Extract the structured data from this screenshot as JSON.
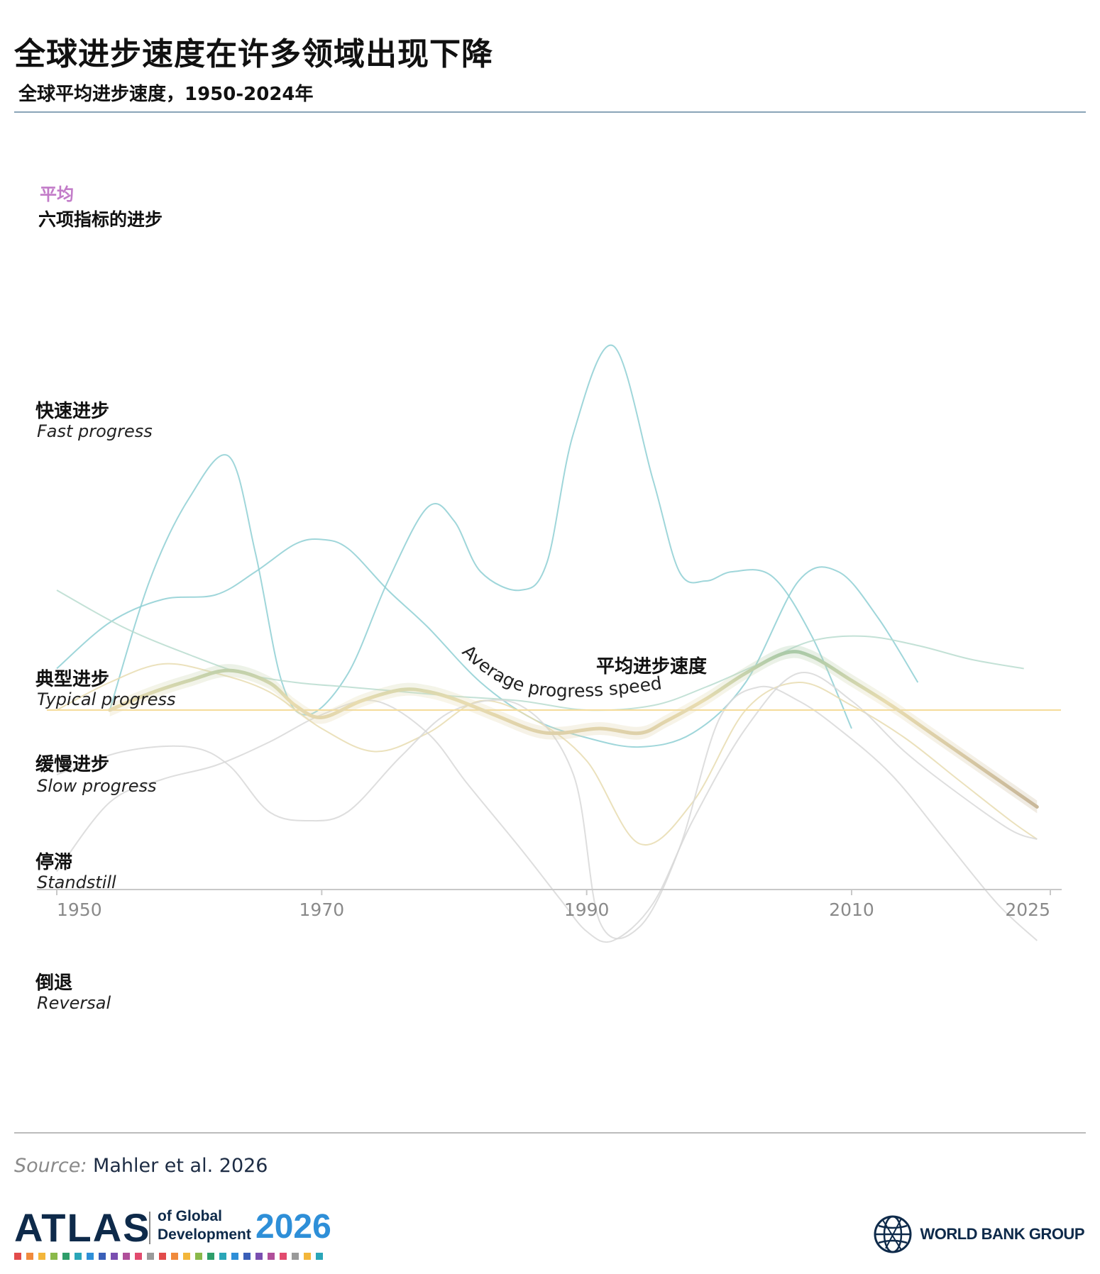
{
  "header": {
    "title": "全球进步速度在许多领域出现下降",
    "subtitle": "全球平均进步速度，1950-2024年"
  },
  "legend": {
    "avg_label": "平均",
    "six_label": "六项指标的进步"
  },
  "categories": [
    {
      "cn": "快速进步",
      "en": "Fast progress"
    },
    {
      "cn": "典型进步",
      "en": "Typical progress"
    },
    {
      "cn": "缓慢进步",
      "en": "Slow progress"
    },
    {
      "cn": "停滞",
      "en": "Standstill"
    },
    {
      "cn": "倒退",
      "en": "Reversal"
    }
  ],
  "annotations": {
    "avg_cn": "平均进步速度",
    "avg_en": "Average progress speed"
  },
  "chart_data": {
    "type": "line",
    "xlim": [
      1950,
      2025
    ],
    "x_ticks": [
      "1950",
      "1970",
      "1990",
      "2010",
      "2025"
    ],
    "y_categories": [
      "Reversal",
      "Standstill",
      "Slow progress",
      "Typical progress",
      "Fast progress"
    ],
    "grid": false,
    "series": [
      {
        "role": "average",
        "x": [
          1954,
          1957,
          1960,
          1963,
          1966,
          1968,
          1970,
          1973,
          1976,
          1978,
          1980,
          1983,
          1986,
          1988,
          1991,
          1994,
          1996,
          1999,
          2002,
          2005,
          2007,
          2010,
          2013,
          2016,
          2019,
          2022,
          2024
        ],
        "y": [
          0.0,
          0.18,
          0.32,
          0.43,
          0.3,
          0.05,
          -0.08,
          0.1,
          0.22,
          0.2,
          0.12,
          -0.05,
          -0.22,
          -0.25,
          -0.2,
          -0.25,
          -0.12,
          0.12,
          0.4,
          0.62,
          0.58,
          0.32,
          0.05,
          -0.25,
          -0.55,
          -0.85,
          -1.05
        ]
      },
      {
        "role": "indicator",
        "x": [
          1954,
          1957,
          1960,
          1963,
          1965,
          1967,
          1969,
          1972,
          1975,
          1978,
          1980,
          1982,
          1985,
          1987,
          1989,
          1992,
          1995,
          1997,
          1999,
          2001,
          2004,
          2007,
          2010
        ],
        "y": [
          0.0,
          1.4,
          2.3,
          2.75,
          1.7,
          0.3,
          -0.05,
          0.4,
          1.4,
          2.2,
          2.05,
          1.5,
          1.3,
          1.6,
          3.0,
          3.95,
          2.5,
          1.5,
          1.4,
          1.5,
          1.45,
          0.8,
          -0.2
        ]
      },
      {
        "role": "indicator",
        "x": [
          1950,
          1954,
          1958,
          1962,
          1965,
          1968,
          1970,
          1972,
          1975,
          1978,
          1982,
          1986,
          1990,
          1994,
          1998,
          2002,
          2006,
          2009,
          2012,
          2015
        ],
        "y": [
          0.45,
          0.95,
          1.2,
          1.25,
          1.5,
          1.8,
          1.85,
          1.75,
          1.3,
          0.9,
          0.3,
          -0.1,
          -0.3,
          -0.4,
          -0.25,
          0.3,
          1.4,
          1.5,
          1.0,
          0.3
        ]
      },
      {
        "role": "indicator",
        "x": [
          1950,
          1955,
          1960,
          1964,
          1968,
          1972,
          1976,
          1980,
          1985,
          1990,
          1995,
          1999,
          2003,
          2007,
          2011,
          2015,
          2019,
          2023
        ],
        "y": [
          1.3,
          0.9,
          0.6,
          0.4,
          0.3,
          0.25,
          0.2,
          0.15,
          0.1,
          0.0,
          0.05,
          0.25,
          0.5,
          0.75,
          0.8,
          0.7,
          0.55,
          0.45
        ]
      },
      {
        "role": "indicator",
        "x": [
          1950,
          1954,
          1958,
          1962,
          1966,
          1970,
          1974,
          1978,
          1982,
          1986,
          1990,
          1994,
          1998,
          2002,
          2006,
          2010,
          2014,
          2018,
          2022,
          2024
        ],
        "y": [
          0.0,
          0.3,
          0.5,
          0.4,
          0.2,
          -0.2,
          -0.45,
          -0.25,
          0.1,
          -0.1,
          -0.55,
          -1.45,
          -1.0,
          0.0,
          0.3,
          0.05,
          -0.3,
          -0.75,
          -1.2,
          -1.4
        ]
      },
      {
        "role": "indicator",
        "x": [
          1950,
          1955,
          1960,
          1963,
          1966,
          1969,
          1972,
          1976,
          1980,
          1985,
          1989,
          1991,
          1994,
          1997,
          2000,
          2003,
          2006,
          2009,
          2013,
          2017,
          2021,
          2024
        ],
        "y": [
          -0.7,
          -0.45,
          -0.4,
          -0.6,
          -1.1,
          -1.2,
          -1.1,
          -0.5,
          0.0,
          0.05,
          -0.7,
          -2.3,
          -2.35,
          -1.5,
          -0.1,
          0.25,
          0.1,
          -0.2,
          -0.7,
          -1.4,
          -2.1,
          -2.5
        ]
      },
      {
        "role": "indicator",
        "x": [
          1950,
          1954,
          1958,
          1962,
          1966,
          1970,
          1974,
          1978,
          1981,
          1985,
          1988,
          1990,
          1992,
          1995,
          1998,
          2002,
          2006,
          2010,
          2014,
          2018,
          2022,
          2024
        ],
        "y": [
          -1.75,
          -1.0,
          -0.75,
          -0.6,
          -0.35,
          -0.05,
          0.1,
          -0.25,
          -0.8,
          -1.5,
          -2.05,
          -2.4,
          -2.5,
          -2.1,
          -1.2,
          -0.2,
          0.4,
          0.1,
          -0.45,
          -0.9,
          -1.3,
          -1.4
        ]
      }
    ]
  },
  "footer": {
    "source_label": "Source:",
    "source_text": "Mahler et al. 2026",
    "atlas_word": "ATLAS",
    "atlas_of": "of Global",
    "atlas_dev": "Development",
    "atlas_year": "2026",
    "wbg_name": "WORLD BANK GROUP"
  },
  "colors": {
    "fast": "#8ecfd3",
    "typical": "#7fc2a8",
    "slow": "#e8dcb0",
    "reversal": "#d8d8d8",
    "avg_label": "#c27bc8",
    "baseline": "#f5dc9a",
    "axis": "#c9c9c9"
  }
}
